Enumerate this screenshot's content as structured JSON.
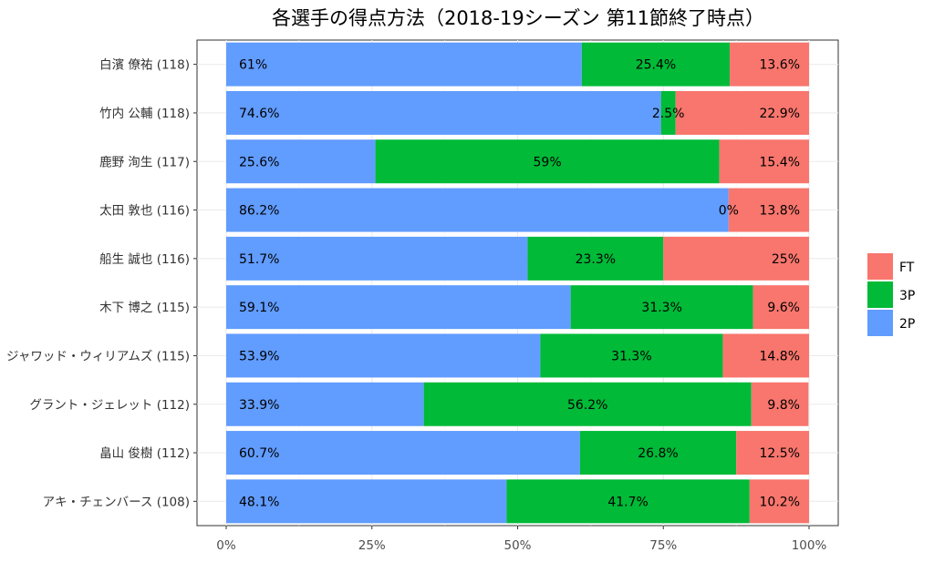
{
  "chart_data": {
    "type": "bar",
    "orientation": "horizontal",
    "stacked": true,
    "title": "各選手の得点方法（2018-19シーズン 第11節終了時点）",
    "xlabel": "",
    "ylabel": "",
    "xlim": [
      0,
      100
    ],
    "x_ticks": [
      "0%",
      "25%",
      "50%",
      "75%",
      "100%"
    ],
    "grid": true,
    "legend_position": "right",
    "categories": [
      "白濱 僚祐 (118)",
      "竹内 公輔 (118)",
      "鹿野 洵生 (117)",
      "太田 敦也 (116)",
      "船生 誠也 (116)",
      "木下 博之 (115)",
      "ジャワッド・ウィリアムズ (115)",
      "グラント・ジェレット (112)",
      "畠山 俊樹 (112)",
      "アキ・チェンバース (108)"
    ],
    "series": [
      {
        "name": "2P",
        "color": "#619CFF",
        "values": [
          61,
          74.6,
          25.6,
          86.2,
          51.7,
          59.1,
          53.9,
          33.9,
          60.7,
          48.1
        ],
        "labels": [
          "61%",
          "74.6%",
          "25.6%",
          "86.2%",
          "51.7%",
          "59.1%",
          "53.9%",
          "33.9%",
          "60.7%",
          "48.1%"
        ]
      },
      {
        "name": "3P",
        "color": "#00BA38",
        "values": [
          25.4,
          2.5,
          59,
          0,
          23.3,
          31.3,
          31.3,
          56.2,
          26.8,
          41.7
        ],
        "labels": [
          "25.4%",
          "2.5%",
          "59%",
          "0%",
          "23.3%",
          "31.3%",
          "31.3%",
          "56.2%",
          "26.8%",
          "41.7%"
        ]
      },
      {
        "name": "FT",
        "color": "#F8766D",
        "values": [
          13.6,
          22.9,
          15.4,
          13.8,
          25,
          9.6,
          14.8,
          9.8,
          12.5,
          10.2
        ],
        "labels": [
          "13.6%",
          "22.9%",
          "15.4%",
          "13.8%",
          "25%",
          "9.6%",
          "14.8%",
          "9.8%",
          "12.5%",
          "10.2%"
        ]
      }
    ],
    "legend_order": [
      "FT",
      "3P",
      "2P"
    ]
  }
}
